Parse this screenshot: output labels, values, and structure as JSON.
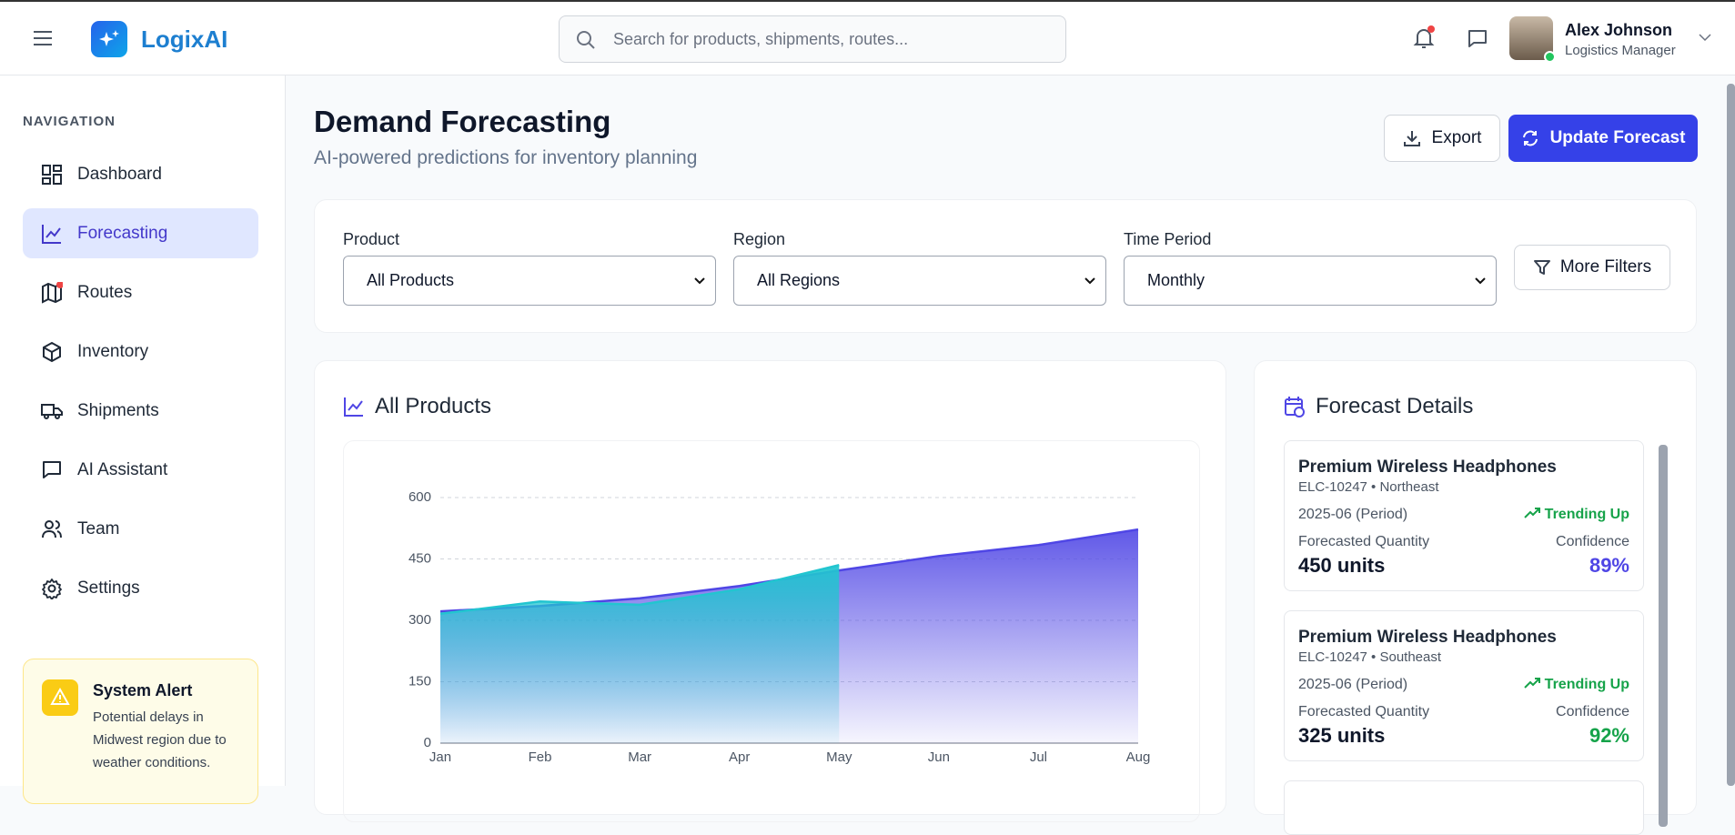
{
  "header": {
    "brand": "LogixAI",
    "search_placeholder": "Search for products, shipments, routes...",
    "user_name": "Alex Johnson",
    "user_role": "Logistics Manager"
  },
  "sidebar": {
    "section": "NAVIGATION",
    "items": [
      "Dashboard",
      "Forecasting",
      "Routes",
      "Inventory",
      "Shipments",
      "AI Assistant",
      "Team",
      "Settings"
    ],
    "alert_title": "System Alert",
    "alert_text": "Potential delays in Midwest region due to weather conditions."
  },
  "page": {
    "title": "Demand Forecasting",
    "subtitle": "AI-powered predictions for inventory planning",
    "export": "Export",
    "update": "Update Forecast"
  },
  "filters": {
    "labels": [
      "Product",
      "Region",
      "Time Period"
    ],
    "values": [
      "All Products",
      "All Regions",
      "Monthly"
    ],
    "more": "More Filters"
  },
  "chart_data": {
    "type": "area",
    "title": "All Products",
    "categories": [
      "Jan",
      "Feb",
      "Mar",
      "Apr",
      "May",
      "Jun",
      "Jul",
      "Aug"
    ],
    "series": [
      {
        "color": "#4f46e5",
        "values": [
          322,
          335,
          354,
          384,
          422,
          457,
          484,
          522
        ]
      },
      {
        "color": "#22c5d0",
        "values": [
          316,
          346,
          338,
          376,
          435,
          null,
          null,
          null
        ]
      }
    ],
    "ylim": [
      0,
      600
    ],
    "yticks": [
      0,
      150,
      300,
      450,
      600
    ],
    "grid": true
  },
  "details": {
    "title": "Forecast Details",
    "cards": [
      {
        "name": "Premium Wireless Headphones",
        "sub": "ELC-10247 • Northeast",
        "period": "2025-06 (Period)",
        "trend": "Trending Up",
        "qty_label": "Forecasted Quantity",
        "qty": "450 units",
        "conf_label": "Confidence",
        "conf": "89%",
        "conf_color": "#4f46e5"
      },
      {
        "name": "Premium Wireless Headphones",
        "sub": "ELC-10247 • Southeast",
        "period": "2025-06 (Period)",
        "trend": "Trending Up",
        "qty_label": "Forecasted Quantity",
        "qty": "325 units",
        "conf_label": "Confidence",
        "conf": "92%",
        "conf_color": "#16a34a"
      }
    ]
  }
}
